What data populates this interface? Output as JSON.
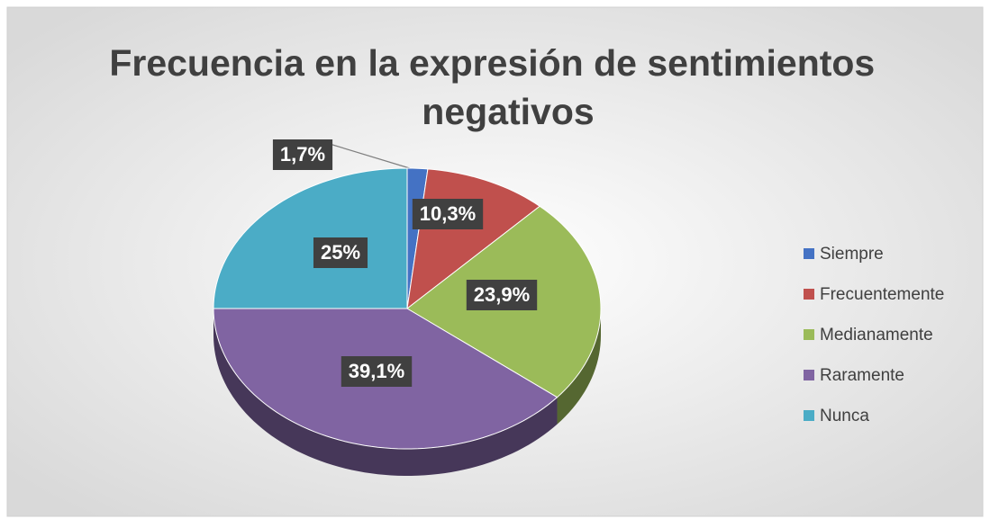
{
  "chart_data": {
    "type": "pie",
    "title": "Frecuencia en la expresión de sentimientos negativos",
    "categories": [
      "Siempre",
      "Frecuentemente",
      "Medianamente",
      "Raramente",
      "Nunca"
    ],
    "values": [
      1.7,
      10.3,
      23.9,
      39.1,
      25
    ],
    "value_labels": [
      "1,7%",
      "10,3%",
      "23,9%",
      "39,1%",
      "25%"
    ],
    "colors": [
      "#4472c4",
      "#c0504d",
      "#9bbb59",
      "#8064a2",
      "#4bacc6"
    ],
    "legend": "right"
  }
}
